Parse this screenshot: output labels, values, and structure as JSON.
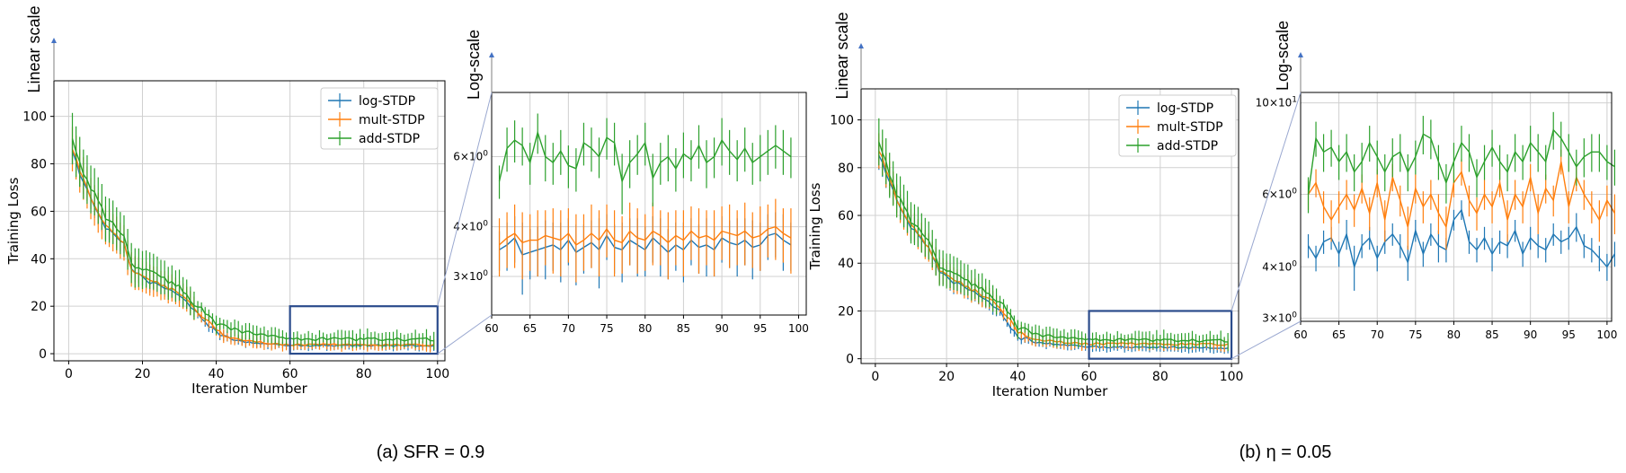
{
  "colors": {
    "log": "#1f77b4",
    "mult": "#ff7f0e",
    "add": "#2ca02c",
    "zoom": "#2b4c8c",
    "connector": "#9aa8d0",
    "arrow": "#4472c4"
  },
  "captions": [
    "(a) SFR = 0.9",
    "(b) η = 0.05"
  ],
  "chart_data": [
    {
      "id": "a-linear",
      "type": "line",
      "scale_label": "Linear scale",
      "xlabel": "Iteration Number",
      "ylabel": "Training Loss",
      "xlim": [
        -4,
        102
      ],
      "ylim": [
        -3,
        115
      ],
      "xticks": [
        0,
        20,
        40,
        60,
        80,
        100
      ],
      "yticks": [
        0,
        20,
        40,
        60,
        80,
        100
      ],
      "legend": [
        "log-STDP",
        "mult-STDP",
        "add-STDP"
      ],
      "series": [
        {
          "name": "log-STDP",
          "key": "log",
          "anchors": [
            [
              1,
              86
            ],
            [
              3,
              76
            ],
            [
              6,
              65
            ],
            [
              10,
              53
            ],
            [
              15,
              46
            ],
            [
              17,
              35
            ],
            [
              22,
              30
            ],
            [
              30,
              25
            ],
            [
              38,
              12
            ],
            [
              42,
              7
            ],
            [
              48,
              5
            ],
            [
              55,
              4
            ],
            [
              60,
              3.5
            ],
            [
              100,
              3.4
            ]
          ],
          "err": 4,
          "errTail": 1.2,
          "noise": 0.8
        },
        {
          "name": "mult-STDP",
          "key": "mult",
          "anchors": [
            [
              1,
              87
            ],
            [
              3,
              77
            ],
            [
              6,
              66
            ],
            [
              10,
              54
            ],
            [
              15,
              47
            ],
            [
              17,
              35
            ],
            [
              22,
              31
            ],
            [
              30,
              26
            ],
            [
              38,
              13
            ],
            [
              42,
              7.5
            ],
            [
              48,
              5.5
            ],
            [
              55,
              4.3
            ],
            [
              60,
              3.8
            ],
            [
              100,
              3.7
            ]
          ],
          "err": 8,
          "errTail": 1.5,
          "noise": 0.8
        },
        {
          "name": "add-STDP",
          "key": "add",
          "anchors": [
            [
              1,
              92
            ],
            [
              3,
              80
            ],
            [
              6,
              70
            ],
            [
              10,
              58
            ],
            [
              15,
              49
            ],
            [
              17,
              38
            ],
            [
              22,
              34
            ],
            [
              30,
              28
            ],
            [
              38,
              15
            ],
            [
              42,
              11
            ],
            [
              48,
              9
            ],
            [
              55,
              7.5
            ],
            [
              60,
              6.2
            ],
            [
              100,
              6.0
            ]
          ],
          "err": 9,
          "errTail": 2,
          "noise": 1.4
        }
      ],
      "zoom_box": {
        "x": [
          60,
          100
        ],
        "y": [
          0,
          20
        ]
      }
    },
    {
      "id": "a-log",
      "type": "line",
      "scale_label": "Log-scale",
      "xlim": [
        60,
        101
      ],
      "ylim": [
        2.4,
        8.7
      ],
      "log_y": true,
      "xticks": [
        60,
        65,
        70,
        75,
        80,
        85,
        90,
        95,
        100
      ],
      "yticks": [
        {
          "v": 6,
          "base": "6",
          "exp": "0"
        },
        {
          "v": 4,
          "base": "4",
          "exp": "0"
        },
        {
          "v": 3,
          "base": "3",
          "exp": "0"
        }
      ],
      "series": [
        {
          "name": "log-STDP",
          "key": "log",
          "values": [
            3.5,
            3.6,
            3.75,
            3.4,
            3.45,
            3.5,
            3.55,
            3.6,
            3.5,
            3.7,
            3.45,
            3.55,
            3.65,
            3.5,
            3.8,
            3.55,
            3.5,
            3.7,
            3.6,
            3.5,
            3.75,
            3.6,
            3.45,
            3.6,
            3.5,
            3.7,
            3.55,
            3.6,
            3.5,
            3.75,
            3.65,
            3.6,
            3.7,
            3.55,
            3.6,
            3.8,
            3.85,
            3.7,
            3.6
          ],
          "err": [
            0.4,
            0.5,
            0.5,
            0.7,
            0.5,
            0.5,
            0.6,
            0.5,
            0.6,
            0.5,
            0.6,
            0.5,
            0.5,
            0.7,
            0.5,
            0.5,
            0.6,
            0.5,
            0.6,
            0.5,
            0.5,
            0.6,
            0.5,
            0.5,
            0.6,
            0.5,
            0.5,
            0.6,
            0.5,
            0.5,
            0.5,
            0.6,
            0.5,
            0.6,
            0.5,
            0.5,
            0.5,
            0.6,
            0.5
          ]
        },
        {
          "name": "mult-STDP",
          "key": "mult",
          "values": [
            3.6,
            3.75,
            3.85,
            3.65,
            3.7,
            3.7,
            3.8,
            3.75,
            3.7,
            3.85,
            3.6,
            3.7,
            3.85,
            3.7,
            3.95,
            3.7,
            3.65,
            3.9,
            3.75,
            3.7,
            3.9,
            3.8,
            3.65,
            3.8,
            3.7,
            3.9,
            3.75,
            3.8,
            3.7,
            3.9,
            3.85,
            3.8,
            3.9,
            3.75,
            3.8,
            3.95,
            4.0,
            3.85,
            3.75
          ],
          "err": [
            0.6,
            0.6,
            0.7,
            0.7,
            0.6,
            0.7,
            0.6,
            0.7,
            0.7,
            0.6,
            0.7,
            0.6,
            0.7,
            0.7,
            0.6,
            0.7,
            0.6,
            0.7,
            0.7,
            0.6,
            0.7,
            0.6,
            0.7,
            0.6,
            0.7,
            0.6,
            0.7,
            0.6,
            0.7,
            0.6,
            0.7,
            0.6,
            0.7,
            0.6,
            0.7,
            0.6,
            0.7,
            0.6,
            0.7
          ]
        },
        {
          "name": "add-STDP",
          "key": "add",
          "values": [
            5.2,
            6.3,
            6.6,
            6.4,
            5.8,
            6.9,
            6.0,
            5.8,
            6.2,
            5.7,
            5.6,
            6.5,
            6.3,
            6.0,
            6.7,
            6.5,
            5.2,
            5.8,
            6.1,
            6.5,
            5.3,
            5.8,
            6.0,
            5.6,
            6.1,
            5.9,
            6.4,
            5.8,
            6.0,
            6.6,
            6.2,
            5.9,
            6.3,
            5.8,
            6.0,
            6.2,
            6.4,
            6.2,
            6.0
          ],
          "err": [
            0.5,
            0.8,
            0.8,
            0.7,
            0.7,
            0.8,
            0.8,
            0.7,
            0.8,
            0.7,
            0.7,
            0.8,
            0.8,
            0.7,
            0.8,
            0.8,
            0.9,
            0.8,
            0.7,
            0.8,
            0.8,
            0.7,
            0.8,
            0.7,
            0.8,
            0.7,
            0.8,
            0.8,
            0.7,
            0.9,
            0.8,
            0.7,
            0.8,
            0.7,
            0.8,
            0.8,
            0.8,
            0.8,
            0.7
          ]
        }
      ]
    },
    {
      "id": "b-linear",
      "type": "line",
      "scale_label": "Linear scale",
      "xlabel": "Iteration Number",
      "ylabel": "Training Loss",
      "xlim": [
        -4,
        102
      ],
      "ylim": [
        -2,
        113
      ],
      "xticks": [
        0,
        20,
        40,
        60,
        80,
        100
      ],
      "yticks": [
        0,
        20,
        40,
        60,
        80,
        100
      ],
      "legend": [
        "log-STDP",
        "mult-STDP",
        "add-STDP"
      ],
      "series": [
        {
          "name": "log-STDP",
          "key": "log",
          "anchors": [
            [
              1,
              86
            ],
            [
              3,
              78
            ],
            [
              6,
              66
            ],
            [
              10,
              55
            ],
            [
              15,
              46
            ],
            [
              18,
              36
            ],
            [
              22,
              32
            ],
            [
              30,
              26
            ],
            [
              35,
              20
            ],
            [
              40,
              9
            ],
            [
              45,
              7
            ],
            [
              52,
              6
            ],
            [
              60,
              5
            ],
            [
              100,
              4.5
            ]
          ],
          "err": 5,
          "errTail": 1.2,
          "noise": 0.8
        },
        {
          "name": "mult-STDP",
          "key": "mult",
          "anchors": [
            [
              1,
              88
            ],
            [
              3,
              79
            ],
            [
              6,
              67
            ],
            [
              10,
              56
            ],
            [
              15,
              47
            ],
            [
              18,
              37
            ],
            [
              22,
              33
            ],
            [
              30,
              27
            ],
            [
              35,
              22
            ],
            [
              40,
              11
            ],
            [
              45,
              8
            ],
            [
              52,
              7
            ],
            [
              60,
              6.3
            ],
            [
              100,
              6.0
            ]
          ],
          "err": 6,
          "errTail": 1.5,
          "noise": 1.0
        },
        {
          "name": "add-STDP",
          "key": "add",
          "anchors": [
            [
              1,
              92
            ],
            [
              3,
              82
            ],
            [
              6,
              69
            ],
            [
              10,
              58
            ],
            [
              15,
              49
            ],
            [
              18,
              39
            ],
            [
              22,
              35
            ],
            [
              30,
              29
            ],
            [
              35,
              24
            ],
            [
              40,
              13
            ],
            [
              45,
              10
            ],
            [
              52,
              9
            ],
            [
              60,
              8
            ],
            [
              100,
              7.5
            ]
          ],
          "err": 8,
          "errTail": 2,
          "noise": 1.2
        }
      ],
      "zoom_box": {
        "x": [
          60,
          100
        ],
        "y": [
          0,
          20
        ]
      }
    },
    {
      "id": "b-log",
      "type": "line",
      "scale_label": "Log-scale",
      "xlim": [
        60,
        100.6
      ],
      "ylim": [
        2.95,
        10.6
      ],
      "log_y": true,
      "xticks": [
        60,
        65,
        70,
        75,
        80,
        85,
        90,
        95,
        100
      ],
      "yticks": [
        {
          "v": 10,
          "base": "10",
          "exp": "1"
        },
        {
          "v": 6,
          "base": "6",
          "exp": "0"
        },
        {
          "v": 4,
          "base": "4",
          "exp": "0"
        },
        {
          "v": 3,
          "base": "3",
          "exp": "0"
        }
      ],
      "series": [
        {
          "name": "log-STDP",
          "key": "log",
          "values": [
            4.5,
            4.2,
            4.6,
            4.7,
            4.3,
            4.8,
            4.0,
            4.5,
            4.7,
            4.2,
            4.6,
            4.8,
            4.5,
            4.1,
            4.9,
            4.3,
            4.8,
            4.5,
            4.4,
            5.2,
            5.5,
            4.6,
            4.4,
            4.7,
            4.3,
            4.6,
            4.5,
            4.9,
            4.3,
            4.7,
            4.5,
            4.4,
            4.8,
            4.6,
            4.7,
            5.0,
            4.5,
            4.4,
            4.2,
            4.0,
            4.3
          ],
          "err": [
            0.3,
            0.3,
            0.3,
            0.3,
            0.3,
            0.4,
            0.5,
            0.3,
            0.3,
            0.3,
            0.3,
            0.3,
            0.3,
            0.4,
            0.3,
            0.3,
            0.3,
            0.4,
            0.3,
            0.3,
            0.3,
            0.3,
            0.3,
            0.3,
            0.4,
            0.3,
            0.3,
            0.3,
            0.3,
            0.3,
            0.3,
            0.3,
            0.3,
            0.3,
            0.3,
            0.4,
            0.3,
            0.3,
            0.3,
            0.3,
            0.3
          ]
        },
        {
          "name": "mult-STDP",
          "key": "mult",
          "values": [
            6.0,
            6.4,
            5.6,
            5.2,
            5.6,
            6.0,
            5.5,
            6.2,
            5.4,
            6.4,
            5.2,
            6.6,
            5.8,
            5.0,
            6.2,
            5.6,
            6.0,
            5.4,
            5.0,
            6.4,
            6.8,
            5.8,
            5.4,
            6.0,
            5.6,
            6.4,
            5.2,
            6.0,
            5.6,
            6.6,
            5.4,
            6.2,
            5.8,
            7.2,
            5.6,
            6.6,
            6.0,
            5.6,
            5.2,
            5.8,
            5.4
          ],
          "err": [
            0.5,
            0.5,
            0.5,
            0.6,
            0.5,
            0.5,
            0.5,
            0.5,
            0.5,
            0.5,
            0.6,
            0.5,
            0.5,
            0.6,
            0.5,
            0.5,
            0.5,
            0.6,
            0.6,
            0.5,
            0.5,
            0.5,
            0.5,
            0.5,
            0.5,
            0.5,
            0.6,
            0.5,
            0.5,
            0.5,
            0.6,
            0.5,
            0.5,
            0.5,
            0.5,
            0.5,
            0.5,
            0.5,
            0.6,
            0.5,
            0.6
          ]
        },
        {
          "name": "add-STDP",
          "key": "add",
          "values": [
            6.0,
            8.2,
            7.6,
            7.8,
            7.2,
            7.6,
            6.8,
            7.2,
            8.0,
            7.4,
            6.8,
            7.4,
            7.6,
            6.8,
            7.4,
            8.4,
            8.2,
            7.2,
            6.4,
            7.2,
            8.0,
            7.6,
            6.6,
            7.2,
            7.8,
            7.2,
            6.8,
            7.6,
            7.2,
            8.0,
            7.6,
            7.2,
            8.6,
            8.2,
            7.6,
            7.0,
            7.4,
            7.6,
            7.6,
            7.2,
            7.0
          ],
          "err": [
            0.6,
            0.8,
            0.8,
            0.8,
            0.7,
            0.8,
            0.7,
            0.8,
            0.8,
            0.7,
            0.7,
            0.8,
            0.8,
            0.7,
            0.7,
            0.9,
            0.9,
            0.7,
            0.7,
            0.8,
            0.8,
            0.8,
            0.7,
            0.7,
            0.8,
            0.7,
            0.7,
            0.8,
            0.7,
            0.8,
            0.8,
            0.7,
            0.9,
            0.8,
            0.8,
            0.7,
            0.8,
            0.8,
            0.8,
            0.7,
            0.7
          ]
        }
      ]
    }
  ]
}
